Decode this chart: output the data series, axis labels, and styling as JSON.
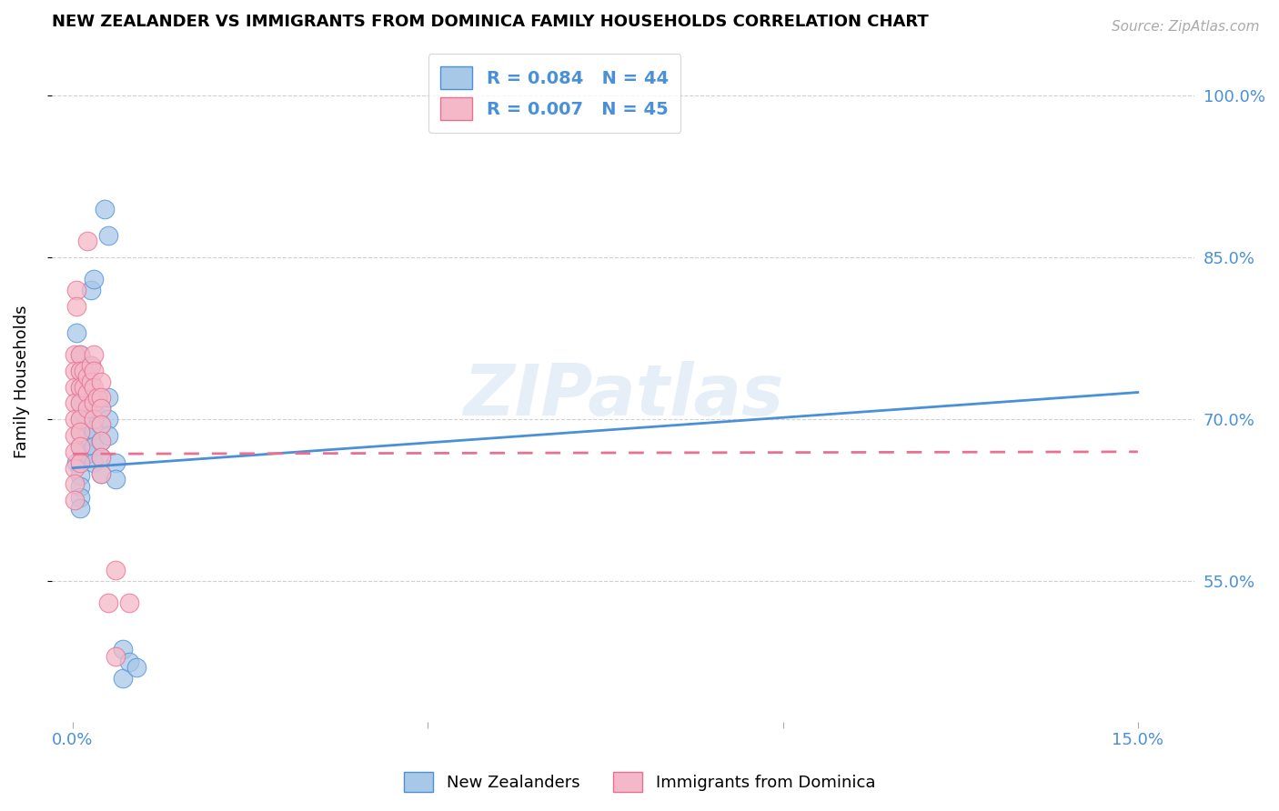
{
  "title": "NEW ZEALANDER VS IMMIGRANTS FROM DOMINICA FAMILY HOUSEHOLDS CORRELATION CHART",
  "source": "Source: ZipAtlas.com",
  "xlabel_ticks": [
    "0.0%",
    "",
    "",
    "15.0%"
  ],
  "xlabel_vals": [
    0.0,
    0.05,
    0.1,
    0.15
  ],
  "ylabel_ticks": [
    "55.0%",
    "70.0%",
    "85.0%",
    "100.0%"
  ],
  "ylabel_vals": [
    0.55,
    0.7,
    0.85,
    1.0
  ],
  "ylabel_label": "Family Households",
  "xlim": [
    -0.003,
    0.158
  ],
  "ylim": [
    0.42,
    1.05
  ],
  "R1": "R = 0.084",
  "N1": "N = 44",
  "R2": "R = 0.007",
  "N2": "N = 45",
  "watermark": "ZIPatlas",
  "blue_color": "#a8c8e8",
  "pink_color": "#f4b8c8",
  "blue_line_color": "#4a90d9",
  "pink_line_color": "#e87090",
  "legend_label1": "New Zealanders",
  "legend_label2": "Immigrants from Dominica",
  "blue_scatter": [
    [
      0.0005,
      0.66
    ],
    [
      0.0005,
      0.78
    ],
    [
      0.001,
      0.76
    ],
    [
      0.001,
      0.745
    ],
    [
      0.001,
      0.73
    ],
    [
      0.001,
      0.715
    ],
    [
      0.001,
      0.7
    ],
    [
      0.001,
      0.688
    ],
    [
      0.001,
      0.675
    ],
    [
      0.001,
      0.66
    ],
    [
      0.001,
      0.648
    ],
    [
      0.001,
      0.638
    ],
    [
      0.001,
      0.628
    ],
    [
      0.001,
      0.618
    ],
    [
      0.0015,
      0.72
    ],
    [
      0.0015,
      0.705
    ],
    [
      0.002,
      0.715
    ],
    [
      0.002,
      0.7
    ],
    [
      0.002,
      0.685
    ],
    [
      0.002,
      0.668
    ],
    [
      0.0025,
      0.82
    ],
    [
      0.0025,
      0.75
    ],
    [
      0.003,
      0.83
    ],
    [
      0.003,
      0.72
    ],
    [
      0.003,
      0.71
    ],
    [
      0.003,
      0.69
    ],
    [
      0.003,
      0.675
    ],
    [
      0.003,
      0.66
    ],
    [
      0.004,
      0.71
    ],
    [
      0.004,
      0.695
    ],
    [
      0.004,
      0.68
    ],
    [
      0.004,
      0.665
    ],
    [
      0.004,
      0.65
    ],
    [
      0.0045,
      0.895
    ],
    [
      0.005,
      0.87
    ],
    [
      0.005,
      0.72
    ],
    [
      0.005,
      0.7
    ],
    [
      0.005,
      0.685
    ],
    [
      0.006,
      0.66
    ],
    [
      0.006,
      0.645
    ],
    [
      0.007,
      0.487
    ],
    [
      0.007,
      0.46
    ],
    [
      0.008,
      0.475
    ],
    [
      0.009,
      0.47
    ]
  ],
  "pink_scatter": [
    [
      0.0003,
      0.76
    ],
    [
      0.0003,
      0.745
    ],
    [
      0.0003,
      0.73
    ],
    [
      0.0003,
      0.715
    ],
    [
      0.0003,
      0.7
    ],
    [
      0.0003,
      0.685
    ],
    [
      0.0003,
      0.67
    ],
    [
      0.0003,
      0.655
    ],
    [
      0.0003,
      0.64
    ],
    [
      0.0003,
      0.625
    ],
    [
      0.0005,
      0.82
    ],
    [
      0.0005,
      0.805
    ],
    [
      0.001,
      0.76
    ],
    [
      0.001,
      0.745
    ],
    [
      0.001,
      0.73
    ],
    [
      0.001,
      0.715
    ],
    [
      0.001,
      0.7
    ],
    [
      0.001,
      0.688
    ],
    [
      0.001,
      0.675
    ],
    [
      0.001,
      0.66
    ],
    [
      0.0015,
      0.745
    ],
    [
      0.0015,
      0.73
    ],
    [
      0.002,
      0.865
    ],
    [
      0.002,
      0.74
    ],
    [
      0.002,
      0.725
    ],
    [
      0.002,
      0.71
    ],
    [
      0.0025,
      0.75
    ],
    [
      0.0025,
      0.735
    ],
    [
      0.003,
      0.76
    ],
    [
      0.003,
      0.745
    ],
    [
      0.003,
      0.73
    ],
    [
      0.003,
      0.715
    ],
    [
      0.003,
      0.7
    ],
    [
      0.0035,
      0.72
    ],
    [
      0.004,
      0.735
    ],
    [
      0.004,
      0.72
    ],
    [
      0.004,
      0.71
    ],
    [
      0.004,
      0.695
    ],
    [
      0.004,
      0.68
    ],
    [
      0.004,
      0.665
    ],
    [
      0.004,
      0.65
    ],
    [
      0.005,
      0.53
    ],
    [
      0.006,
      0.56
    ],
    [
      0.006,
      0.48
    ],
    [
      0.008,
      0.53
    ]
  ],
  "blue_line": [
    [
      0.0,
      0.655
    ],
    [
      0.15,
      0.725
    ]
  ],
  "pink_line": [
    [
      0.0,
      0.668
    ],
    [
      0.15,
      0.67
    ]
  ]
}
